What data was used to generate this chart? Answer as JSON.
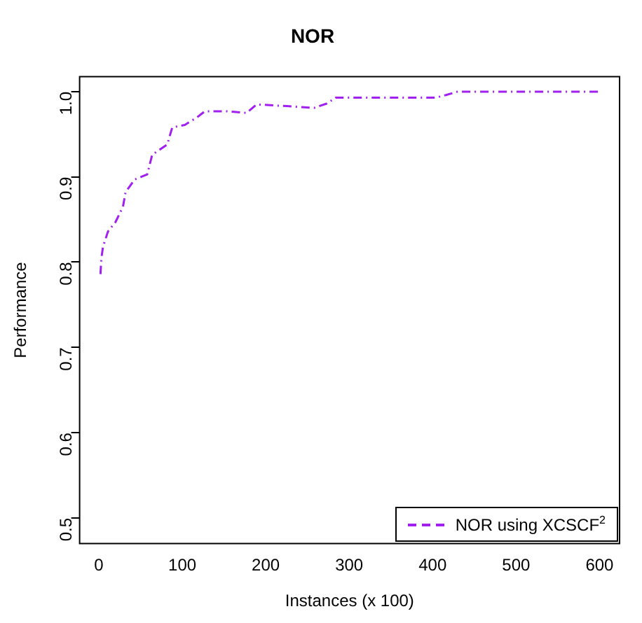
{
  "chart_data": {
    "type": "line",
    "title": "NOR",
    "xlabel": "Instances (x 100)",
    "ylabel": "Performance",
    "x": [
      2,
      3,
      5,
      11,
      20,
      29,
      32,
      43,
      58,
      64,
      82,
      88,
      103,
      118,
      127,
      154,
      177,
      189,
      225,
      258,
      273,
      284,
      332,
      350,
      404,
      416,
      430,
      600
    ],
    "series": [
      {
        "name": "NOR using XCSCF$^{2}$",
        "color": "#a020f0",
        "values": [
          0.786,
          0.804,
          0.818,
          0.836,
          0.847,
          0.865,
          0.882,
          0.897,
          0.903,
          0.926,
          0.938,
          0.958,
          0.961,
          0.97,
          0.977,
          0.977,
          0.975,
          0.985,
          0.983,
          0.981,
          0.986,
          0.993,
          0.993,
          0.993,
          0.993,
          0.996,
          1.0,
          1.0
        ]
      }
    ],
    "xlim": [
      -23,
      624
    ],
    "xticks": [
      0,
      100,
      200,
      300,
      400,
      500,
      600
    ],
    "ylim": [
      0.47,
      1.0175
    ],
    "yticks": [
      0.5,
      0.6,
      0.7,
      0.8,
      0.9,
      {
        "value": 1,
        "label": "1.0"
      }
    ],
    "grid": false,
    "legend": "bottom right",
    "marker": "none",
    "line_style": "dashdot"
  }
}
